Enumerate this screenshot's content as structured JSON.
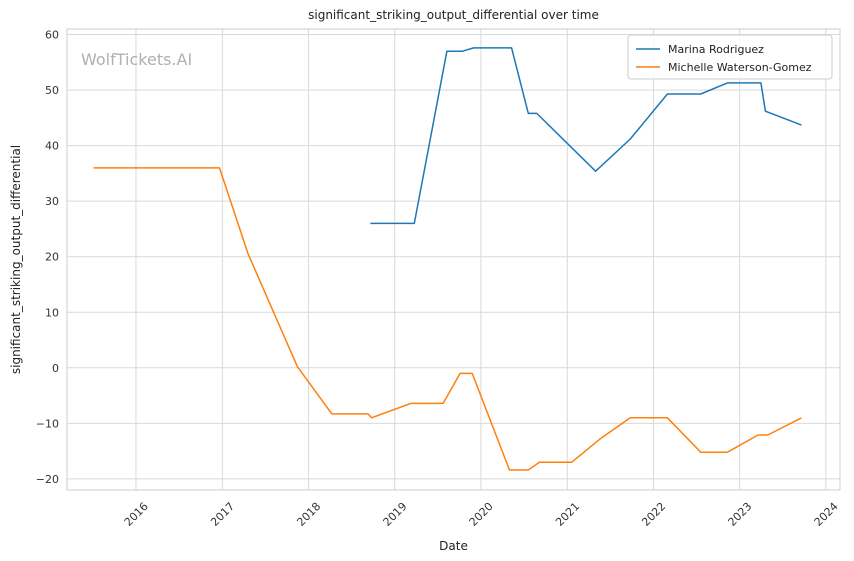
{
  "chart_data": {
    "type": "line",
    "title": "significant_striking_output_differential over time",
    "xlabel": "Date",
    "ylabel": "significant_striking_output_differential",
    "watermark": "WolfTickets.AI",
    "xlim": [
      "2015-03-15",
      "2024-03-01"
    ],
    "ylim": [
      -22,
      61
    ],
    "x_ticks": [
      "2016",
      "2017",
      "2018",
      "2019",
      "2020",
      "2021",
      "2022",
      "2023",
      "2024"
    ],
    "y_ticks": [
      -20,
      -10,
      0,
      10,
      20,
      30,
      40,
      50,
      60
    ],
    "grid": true,
    "legend_position": "top-right",
    "series": [
      {
        "name": "Marina Rodriguez",
        "color": "#1f77b4",
        "points": [
          [
            "2018-09-20",
            26.0
          ],
          [
            "2019-03-25",
            26.0
          ],
          [
            "2019-08-10",
            57.0
          ],
          [
            "2019-10-15",
            57.0
          ],
          [
            "2019-12-01",
            57.6
          ],
          [
            "2020-05-10",
            57.6
          ],
          [
            "2020-07-20",
            45.8
          ],
          [
            "2020-08-25",
            45.8
          ],
          [
            "2021-05-01",
            35.4
          ],
          [
            "2021-09-25",
            41.2
          ],
          [
            "2022-03-01",
            49.3
          ],
          [
            "2022-07-20",
            49.3
          ],
          [
            "2022-11-10",
            51.3
          ],
          [
            "2023-04-01",
            51.3
          ],
          [
            "2023-04-20",
            46.2
          ],
          [
            "2023-09-20",
            43.7
          ]
        ]
      },
      {
        "name": "Michelle Waterson-Gomez",
        "color": "#ff7f0e",
        "points": [
          [
            "2015-07-05",
            36.0
          ],
          [
            "2016-12-20",
            36.0
          ],
          [
            "2017-04-20",
            20.5
          ],
          [
            "2017-11-15",
            0.2
          ],
          [
            "2018-04-10",
            -8.3
          ],
          [
            "2018-09-10",
            -8.3
          ],
          [
            "2018-09-25",
            -9.0
          ],
          [
            "2019-03-10",
            -6.4
          ],
          [
            "2019-07-25",
            -6.4
          ],
          [
            "2019-10-05",
            -1.0
          ],
          [
            "2019-11-25",
            -1.0
          ],
          [
            "2020-05-01",
            -18.4
          ],
          [
            "2020-07-20",
            -18.4
          ],
          [
            "2020-09-05",
            -17.0
          ],
          [
            "2021-01-20",
            -17.0
          ],
          [
            "2021-05-20",
            -12.8
          ],
          [
            "2021-09-25",
            -9.0
          ],
          [
            "2022-03-01",
            -9.0
          ],
          [
            "2022-07-20",
            -15.2
          ],
          [
            "2022-11-10",
            -15.2
          ],
          [
            "2023-03-20",
            -12.1
          ],
          [
            "2023-04-30",
            -12.1
          ],
          [
            "2023-09-20",
            -9.0
          ]
        ]
      }
    ]
  }
}
